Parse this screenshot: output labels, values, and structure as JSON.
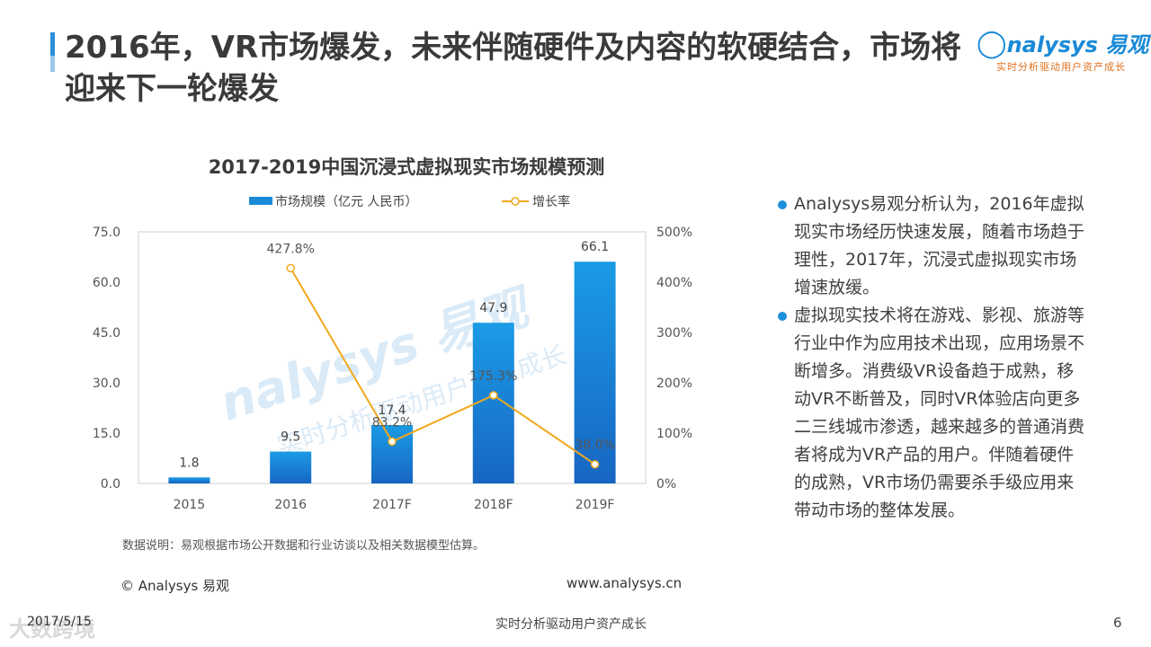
{
  "header": {
    "title": "2016年，VR市场爆发，未来伴随硬件及内容的软硬结合，市场将迎来下一轮爆发",
    "logo_text": "nalysys 易观",
    "logo_tagline": "实时分析驱动用户资产成长"
  },
  "chart_data": {
    "type": "bar",
    "title": "2017-2019中国沉浸式虚拟现实市场规模预测",
    "categories": [
      "2015",
      "2016",
      "2017F",
      "2018F",
      "2019F"
    ],
    "series": [
      {
        "name": "市场规模（亿元 人民币）",
        "type": "bar",
        "axis": "left",
        "values": [
          1.8,
          9.5,
          17.4,
          47.9,
          66.1
        ],
        "labels": [
          "1.8",
          "9.5",
          "17.4",
          "47.9",
          "66.1"
        ],
        "color": "#1a8ad6"
      },
      {
        "name": "增长率",
        "type": "line",
        "axis": "right",
        "values": [
          null,
          427.8,
          83.2,
          175.3,
          38.0
        ],
        "labels": [
          "",
          "427.8%",
          "83.2%",
          "175.3%",
          "38.0%"
        ],
        "color": "#f0a81c"
      }
    ],
    "ylim": [
      0,
      75
    ],
    "yticks": [
      "75.0",
      "60.0",
      "45.0",
      "30.0",
      "15.0",
      "0.0"
    ],
    "y2lim": [
      0,
      500
    ],
    "y2ticks": [
      "500%",
      "400%",
      "300%",
      "200%",
      "100%",
      "0%"
    ],
    "watermark_brand": "nalysys 易观",
    "watermark_tagline": "实时分析驱动用户资产成长"
  },
  "notes": [
    "Analysys易观分析认为，2016年虚拟现实市场经历快速发展，随着市场趋于理性，2017年，沉浸式虚拟现实市场增速放缓。",
    "虚拟现实技术将在游戏、影视、旅游等行业中作为应用技术出现，应用场景不断增多。消费级VR设备趋于成熟，移动VR不断普及，同时VR体验店向更多二三线城市渗透，越来越多的普通消费者将成为VR产品的用户。伴随着硬件的成熟，VR市场仍需要杀手级应用来带动市场的整体发展。"
  ],
  "footer": {
    "source": "数据说明：易观根据市场公开数据和行业访谈以及相关数据模型估算。",
    "copyright": "© Analysys 易观",
    "website": "www.analysys.cn",
    "date": "2017/5/15",
    "slogan": "实时分析驱动用户资产成长",
    "page": "6",
    "corner_watermark": "大数跨境"
  },
  "colors": {
    "accent": "#1a8ad6",
    "line": "#f0a81c",
    "logo_tag": "#e0711f"
  }
}
